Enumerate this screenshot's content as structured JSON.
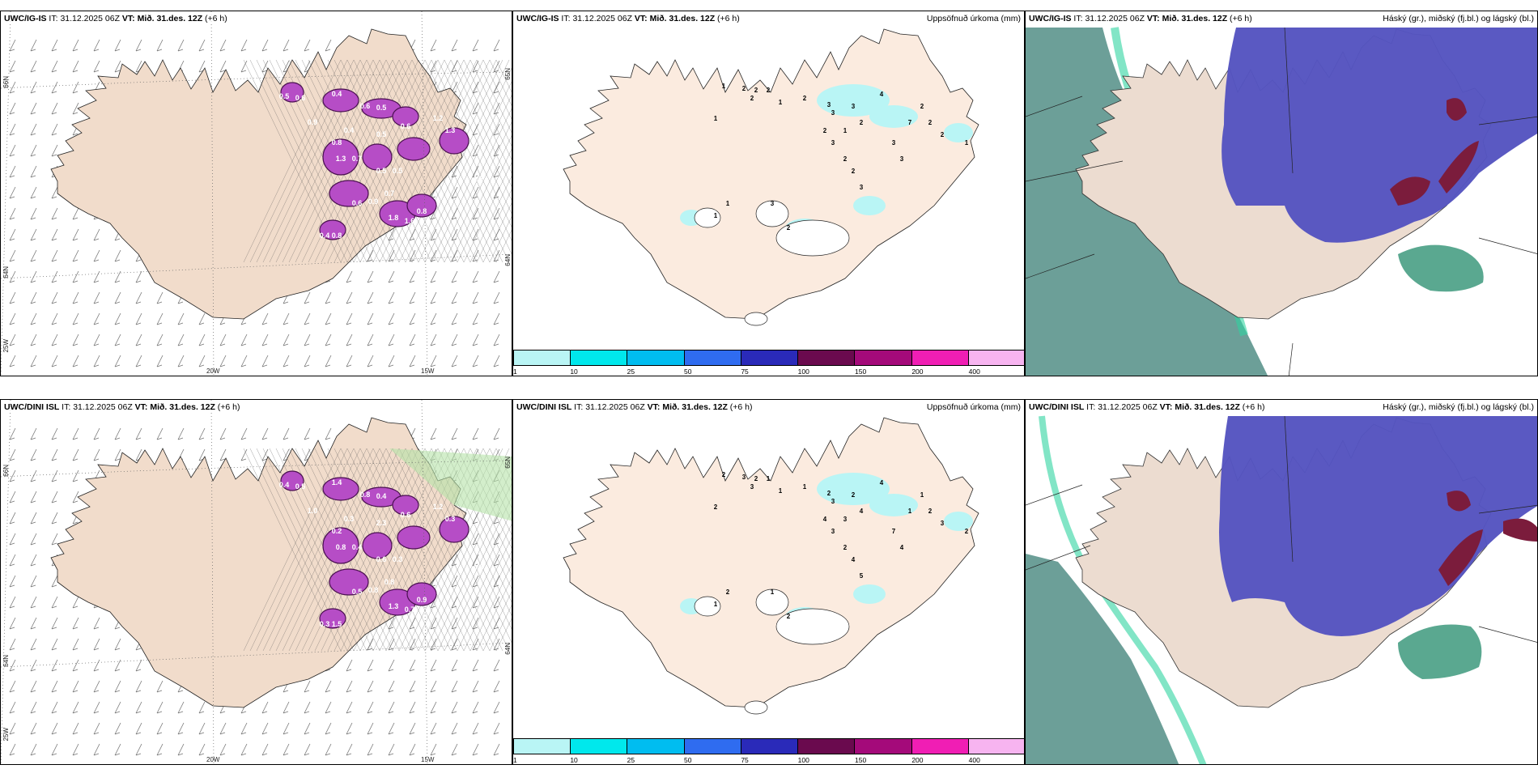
{
  "rows": [
    {
      "model": "UWC/IG-IS",
      "it_label": "IT:",
      "it_value": "31.12.2025 06Z",
      "vt_label": "VT:",
      "vt_value": "Mið. 31.des. 12Z",
      "lead": "(+6 h)",
      "lon_labels": [
        "20W",
        "15W"
      ],
      "lat_labels": [
        "66N",
        "64N",
        "25W",
        "65N",
        "64N"
      ],
      "left_values": [
        "0.5",
        "0.6",
        "0.6",
        "0.5",
        "0.4",
        "0.9",
        "0.4",
        "1.3",
        "0.7",
        "0.5",
        "0.8",
        "0.6",
        "1.2",
        "1.3",
        "0.5",
        "0.5",
        "0.6",
        "0.9",
        "0.7",
        "1.8",
        "1.6",
        "0.8",
        "0.4",
        "0.8",
        "1.2"
      ],
      "mid_values": [
        "1",
        "2",
        "2",
        "2",
        "1",
        "2",
        "1",
        "2",
        "3",
        "3",
        "3",
        "4",
        "2",
        "1",
        "2",
        "3",
        "2",
        "2",
        "3",
        "7",
        "3",
        "3",
        "2",
        "2",
        "2",
        "1",
        "1",
        "3",
        "2",
        "1"
      ]
    },
    {
      "model": "UWC/DINI ISL",
      "it_label": "IT:",
      "it_value": "31.12.2025 06Z",
      "vt_label": "VT:",
      "vt_value": "Mið. 31.des. 12Z",
      "lead": "(+6 h)",
      "lon_labels": [
        "20W",
        "15W"
      ],
      "lat_labels": [
        "66N",
        "64N",
        "25W",
        "65N",
        "64N"
      ],
      "left_values": [
        "0.4",
        "0.5",
        "0.8",
        "0.4",
        "1.4",
        "1.0",
        "0.3",
        "0.8",
        "0.4",
        "2.3",
        "0.2",
        "0.6",
        "1.2",
        "0.3",
        "0.6",
        "0.3",
        "0.5",
        "0.8",
        "0.8",
        "1.3",
        "0.7",
        "0.9",
        "0.3",
        "1.5",
        "0.5"
      ],
      "mid_values": [
        "2",
        "3",
        "3",
        "2",
        "2",
        "1",
        "1",
        "1",
        "2",
        "3",
        "2",
        "4",
        "4",
        "3",
        "4",
        "3",
        "2",
        "4",
        "5",
        "1",
        "7",
        "4",
        "1",
        "2",
        "3",
        "2",
        "1",
        "1",
        "2",
        "2"
      ]
    }
  ],
  "mid_right_label": "Uppsöfnuð úrkoma (mm)",
  "right_right_label": "Háský (gr.), miðský (fj.bl.) og lágský (bl.)",
  "colorbar": {
    "colors": [
      "#b9f5f5",
      "#00e8ec",
      "#00bdf0",
      "#2f6cf0",
      "#2a2ab9",
      "#6a0a4e",
      "#a40a7a",
      "#f01eb4",
      "#f7b4f0"
    ],
    "ticks": [
      "1",
      "10",
      "25",
      "50",
      "75",
      "100",
      "150",
      "200",
      "400"
    ]
  },
  "colors": {
    "land": "#f1dccb",
    "land_mid": "#fbebdf",
    "precip_magenta": "#b64dc6",
    "cyan_light": "#b9f5f5",
    "high_cloud": "#6c9f98",
    "mid_cloud": "#5554c0",
    "low_cloud": "#7b1c3c"
  }
}
